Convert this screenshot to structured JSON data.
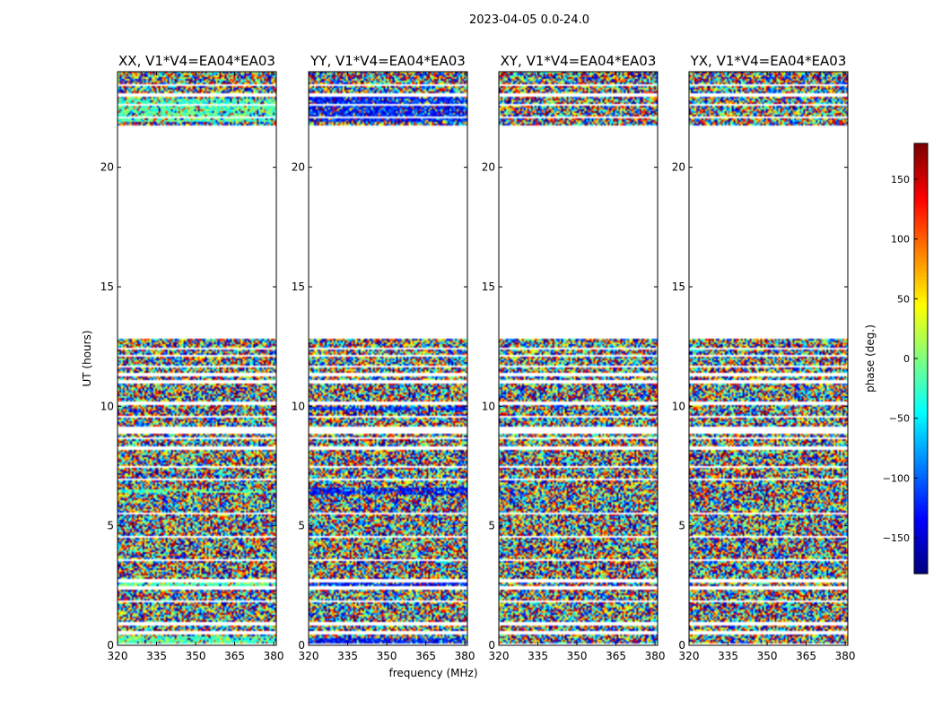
{
  "suptitle": "2023-04-05 0.0-24.0",
  "chart_data": {
    "type": "heatmap",
    "quantity": "phase",
    "xlabel": "frequency (MHz)",
    "ylabel": "UT (hours)",
    "xlim": [
      320,
      381
    ],
    "ylim": [
      0,
      24
    ],
    "xticks": [
      320,
      335,
      350,
      365,
      380
    ],
    "yticks": [
      0,
      5,
      10,
      15,
      20
    ],
    "panels": [
      {
        "title": "XX, V1*V4=EA04*EA03",
        "bias": 0.45,
        "biasBands": [
          [
            0.0,
            0.4
          ],
          [
            2.45,
            2.65
          ],
          [
            6.4,
            6.5
          ],
          [
            21.9,
            22.9
          ]
        ]
      },
      {
        "title": "YY, V1*V4=EA04*EA03",
        "bias": 0.15,
        "biasBands": [
          [
            0.0,
            0.3
          ],
          [
            2.4,
            2.6
          ],
          [
            6.3,
            6.6
          ],
          [
            9.8,
            10.0
          ],
          [
            21.9,
            23.0
          ]
        ]
      },
      {
        "title": "XY, V1*V4=EA04*EA03",
        "bias": null,
        "biasBands": []
      },
      {
        "title": "YX, V1*V4=EA04*EA03",
        "bias": null,
        "biasBands": []
      }
    ],
    "data_bands_hours": [
      [
        0.1,
        0.45
      ],
      [
        0.6,
        0.85
      ],
      [
        0.95,
        1.8
      ],
      [
        1.85,
        2.3
      ],
      [
        2.45,
        2.65
      ],
      [
        2.75,
        3.55
      ],
      [
        3.6,
        4.5
      ],
      [
        4.55,
        5.5
      ],
      [
        5.55,
        6.35
      ],
      [
        6.4,
        6.9
      ],
      [
        6.95,
        7.4
      ],
      [
        7.5,
        8.2
      ],
      [
        8.35,
        8.6
      ],
      [
        8.7,
        8.85
      ],
      [
        9.15,
        9.55
      ],
      [
        9.6,
        10.05
      ],
      [
        10.2,
        10.95
      ],
      [
        11.1,
        11.25
      ],
      [
        11.4,
        11.6
      ],
      [
        11.7,
        12.05
      ],
      [
        12.15,
        12.35
      ],
      [
        12.45,
        12.85
      ],
      [
        21.75,
        22.05
      ],
      [
        22.15,
        22.55
      ],
      [
        22.65,
        22.95
      ],
      [
        23.1,
        23.4
      ],
      [
        23.5,
        24.0
      ]
    ],
    "colorbar": {
      "label": "phase (deg.)",
      "range": [
        -180,
        180
      ],
      "ticks": [
        -150,
        -100,
        -50,
        0,
        50,
        100,
        150
      ],
      "tick_labels": [
        "−150",
        "−100",
        "−50",
        "0",
        "50",
        "100",
        "150"
      ],
      "colormap": "jet"
    }
  }
}
